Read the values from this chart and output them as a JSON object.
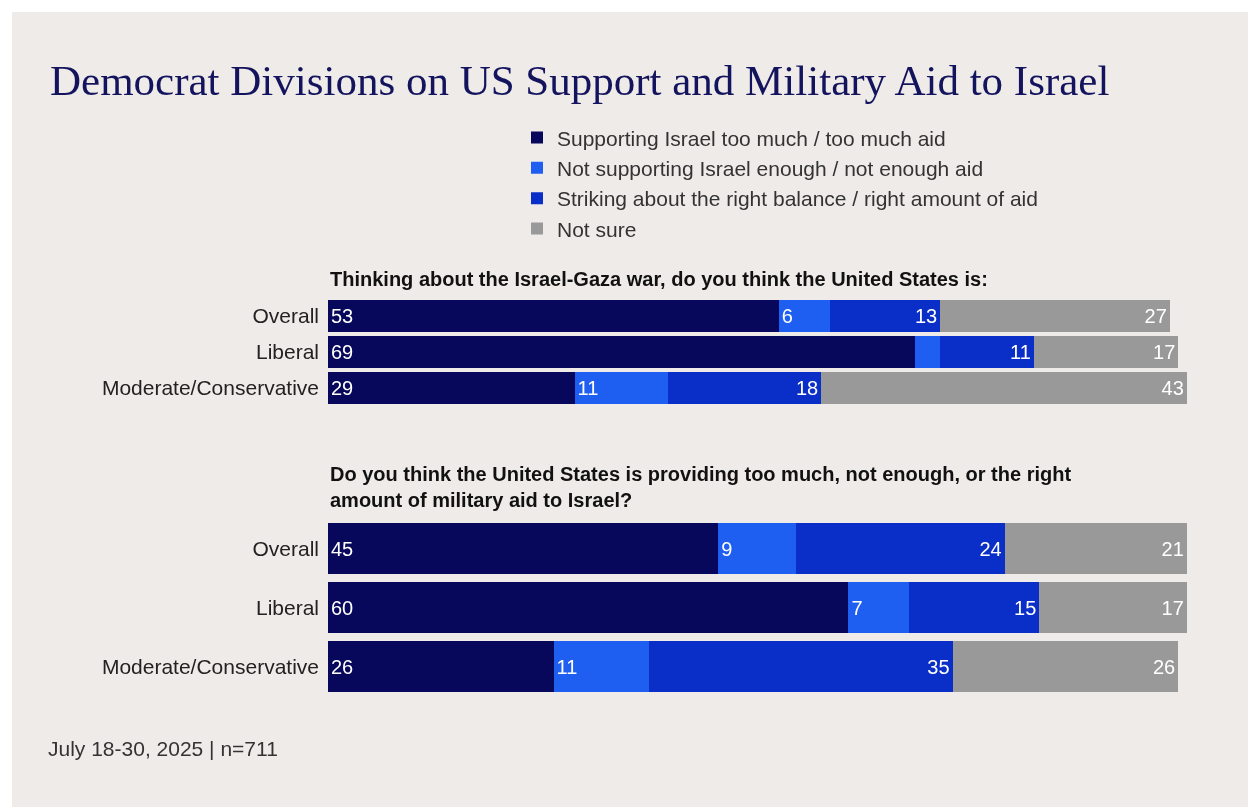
{
  "chart_data": [
    {
      "type": "bar",
      "title": "Democrat Divisions on US Support and Military Aid to Israel",
      "subtitle": "Thinking about the Israel-Gaza war, do you think the United States is:",
      "orientation": "horizontal",
      "stacked": true,
      "legend": "top",
      "categories": [
        "Overall",
        "Liberal",
        "Moderate/Conservative"
      ],
      "series": [
        {
          "name": "Supporting Israel too much / too much aid",
          "color": "#07075c",
          "values": [
            53,
            69,
            29
          ],
          "value_labels": [
            "53",
            "69",
            "29"
          ]
        },
        {
          "name": "Not supporting Israel enough / not enough aid",
          "color": "#1e5ef0",
          "values": [
            6,
            3,
            11
          ],
          "value_labels": [
            "6",
            null,
            "11"
          ]
        },
        {
          "name": "Striking about the right balance / right amount of aid",
          "color": "#0a2ec8",
          "values": [
            13,
            11,
            18
          ],
          "value_labels": [
            "13",
            "11",
            "18"
          ]
        },
        {
          "name": "Not sure",
          "color": "#999999",
          "values": [
            27,
            17,
            43
          ],
          "value_labels": [
            "27",
            "17",
            "43"
          ]
        }
      ]
    },
    {
      "type": "bar",
      "subtitle": "Do you think the United States is providing too much, not enough, or the right amount of military aid to Israel?",
      "orientation": "horizontal",
      "stacked": true,
      "data_labels": true,
      "categories": [
        "Overall",
        "Liberal",
        "Moderate/Conservative"
      ],
      "series": [
        {
          "color": "#07075c",
          "values": [
            45,
            60,
            26
          ]
        },
        {
          "color": "#1e5ef0",
          "values": [
            9,
            7,
            11
          ]
        },
        {
          "color": "#0a2ec8",
          "values": [
            24,
            15,
            35
          ]
        },
        {
          "color": "#999999",
          "values": [
            21,
            17,
            26
          ]
        }
      ],
      "annotations": [
        "July 18-30, 2025 | n=711"
      ]
    }
  ]
}
